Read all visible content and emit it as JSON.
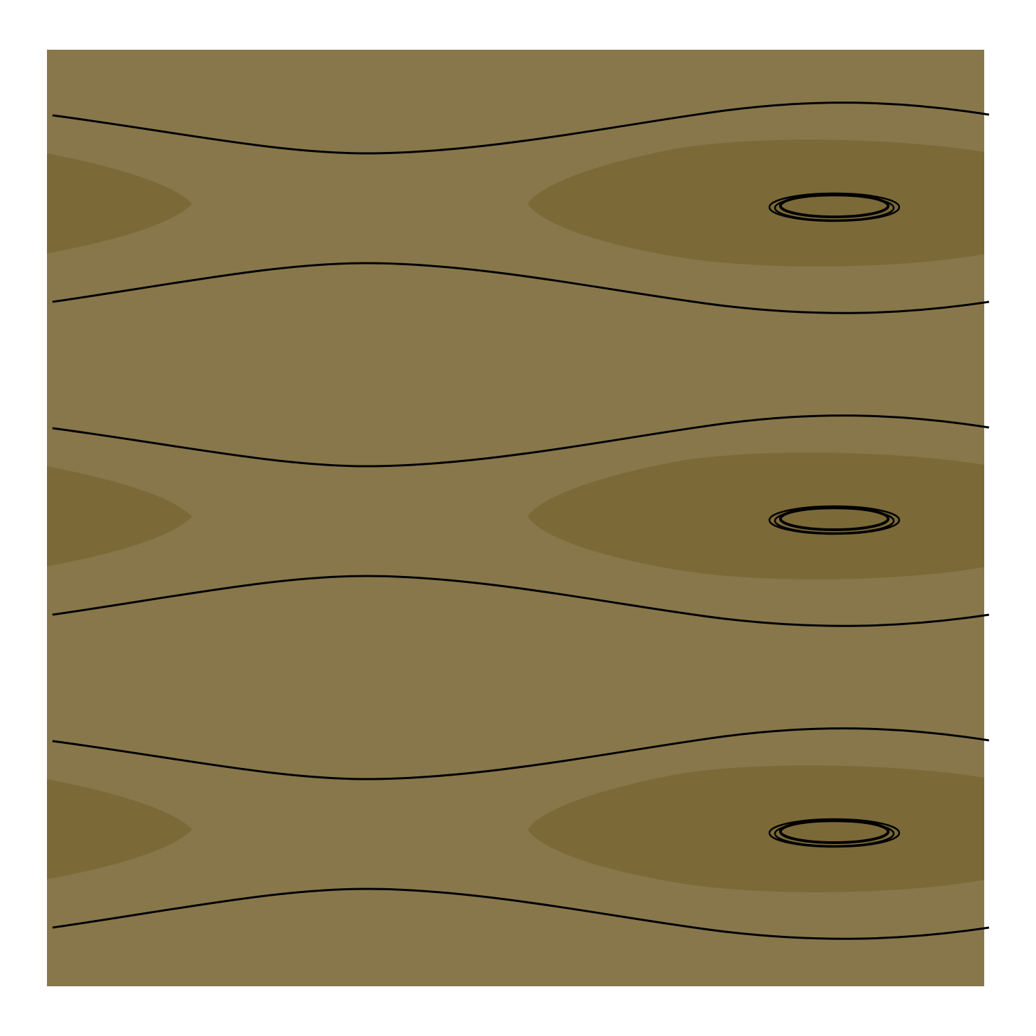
{
  "chart_data": {
    "type": "contour",
    "title": "",
    "xlabel": "",
    "ylabel": "",
    "axes_visible": false,
    "grid": false,
    "legend": "none",
    "periodic_rows": 3,
    "fill_levels": [
      {
        "name": "",
        "color": "#88774B"
      },
      {
        "name": "",
        "color": "#7B6937"
      }
    ],
    "line_color": "#000000",
    "features": {
      "outer_contours_per_row": 2,
      "filled_lobes_per_row": 2,
      "closed_rings_per_row": 3
    }
  }
}
